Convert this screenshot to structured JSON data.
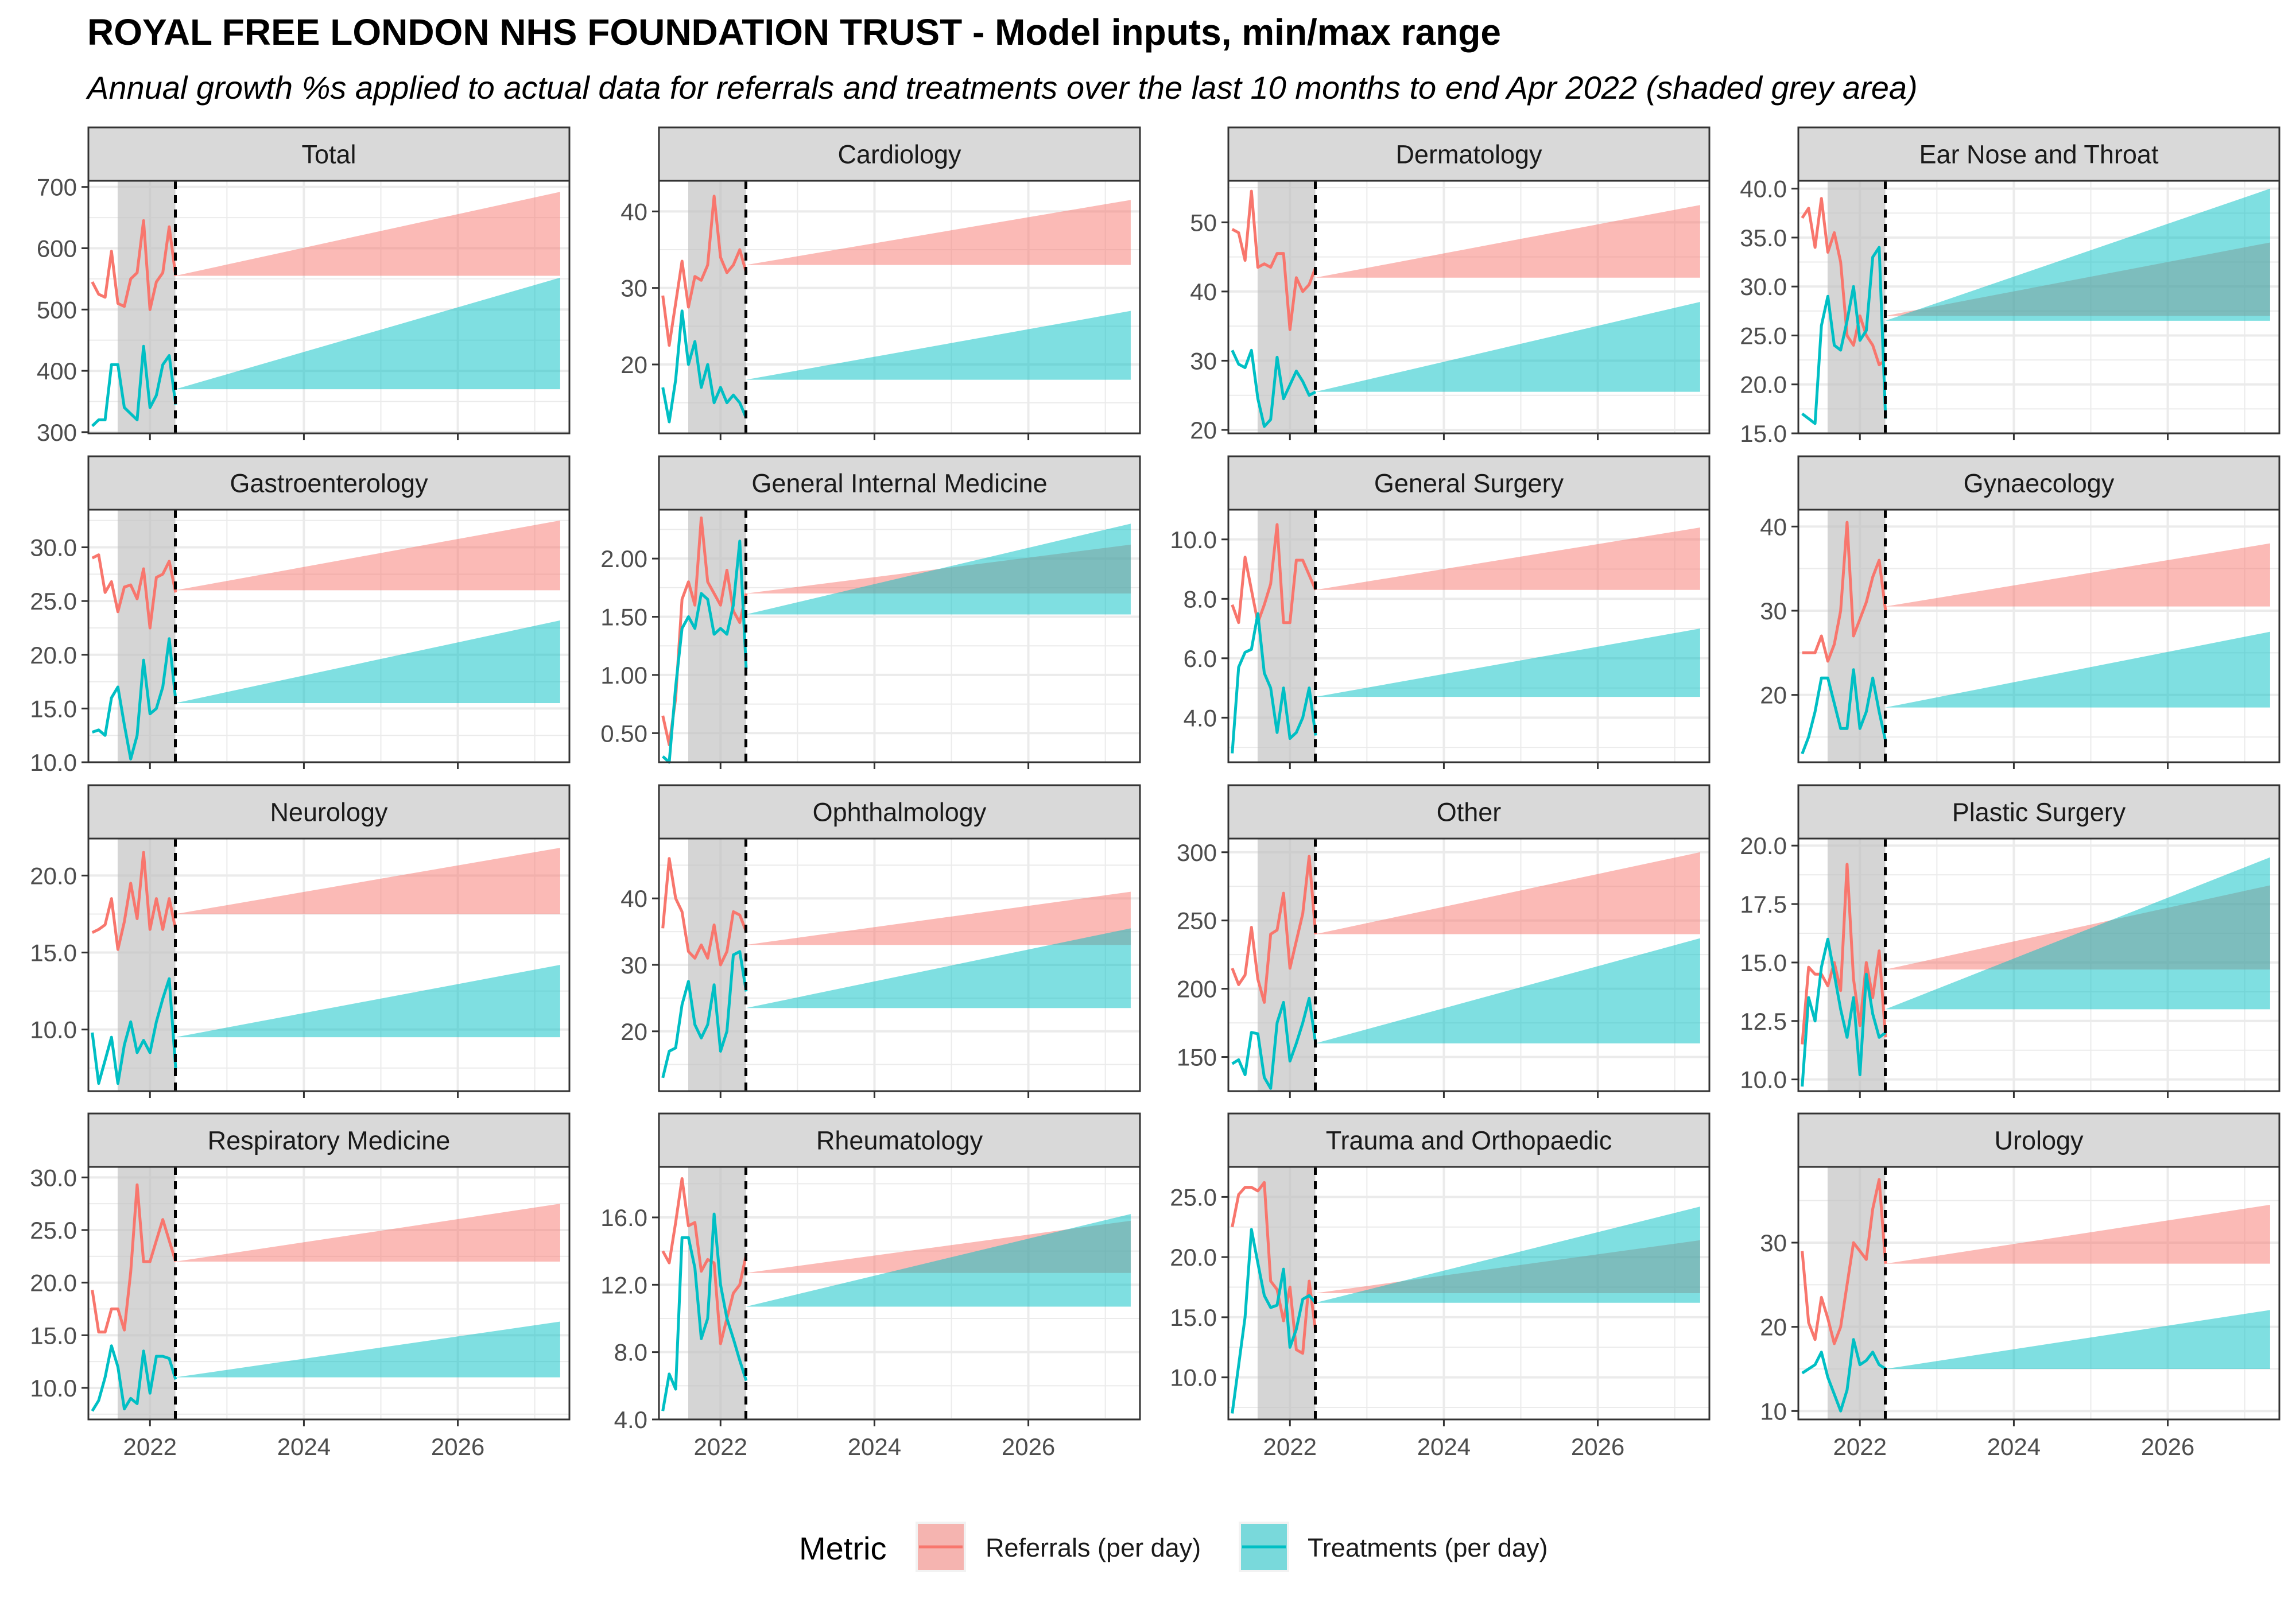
{
  "title": "ROYAL FREE LONDON NHS FOUNDATION TRUST - Model inputs, min/max range",
  "subtitle": "Annual growth %s applied to actual data for referrals and treatments over the last 10 months to end Apr 2022 (shaded grey area)",
  "legend": {
    "title": "Metric",
    "items": [
      {
        "label": "Referrals (per day)",
        "line_color": "#F8766D",
        "fill_color": "#F8766D"
      },
      {
        "label": "Treatments (per day)",
        "line_color": "#00BFC4",
        "fill_color": "#00BFC4"
      }
    ]
  },
  "colors": {
    "referrals": "#F8766D",
    "treatments": "#00BFC4",
    "strip_bg": "#D9D9D9",
    "shade": "#BEBEBE",
    "grid": "#EBEBEB"
  },
  "chart_data": {
    "type": "line",
    "layout": "facet-wrap 4x4, free y scales, shared x axis",
    "x_axis": {
      "ticks": [
        2022,
        2024,
        2026
      ],
      "xlim": [
        2021.2,
        2027.45
      ]
    },
    "shaded_period": [
      2021.58,
      2022.33
    ],
    "forecast_start": 2022.33,
    "forecast_end": 2027.33,
    "panels": [
      {
        "name": "Total",
        "ylim": [
          298,
          710
        ],
        "yticks": [
          "300",
          "400",
          "500",
          "600",
          "700"
        ],
        "referrals": [
          545,
          525,
          520,
          595,
          510,
          505,
          550,
          560,
          645,
          500,
          545,
          560,
          635,
          555
        ],
        "treatments": [
          310,
          320,
          320,
          410,
          410,
          340,
          330,
          320,
          440,
          340,
          360,
          410,
          425,
          345
        ],
        "referrals_band": [
          555,
          555,
          555,
          692
        ],
        "treatments_band": [
          370,
          370,
          370,
          552
        ]
      },
      {
        "name": "Cardiology",
        "ylim": [
          11,
          44
        ],
        "yticks": [
          "20",
          "30",
          "40"
        ],
        "referrals": [
          29,
          22.5,
          28,
          33.5,
          27.5,
          31.5,
          31,
          33,
          42,
          34,
          32,
          33,
          35,
          32
        ],
        "treatments": [
          17,
          12.5,
          18,
          27,
          20,
          23,
          17,
          20,
          15,
          17,
          15,
          16,
          15,
          13
        ],
        "referrals_band": [
          33,
          33,
          33,
          41.5
        ],
        "treatments_band": [
          18,
          18,
          18,
          27
        ]
      },
      {
        "name": "Dermatology",
        "ylim": [
          19.5,
          56
        ],
        "yticks": [
          "20",
          "30",
          "40",
          "50"
        ],
        "referrals": [
          49,
          48.5,
          44.5,
          54.5,
          43.5,
          44,
          43.5,
          45.5,
          45.5,
          34.5,
          42,
          40,
          41,
          43.5
        ],
        "treatments": [
          31.5,
          29.5,
          29,
          31.5,
          24.5,
          20.5,
          21.5,
          30.5,
          24.5,
          26.5,
          28.5,
          27,
          25,
          25.5
        ],
        "referrals_band": [
          42,
          42,
          42,
          52.5
        ],
        "treatments_band": [
          25.5,
          25.5,
          25.5,
          38.5
        ]
      },
      {
        "name": "Ear Nose and Throat",
        "ylim": [
          15,
          40.8
        ],
        "yticks": [
          "15.0",
          "20.0",
          "25.0",
          "30.0",
          "35.0",
          "40.0"
        ],
        "referrals": [
          37,
          38,
          34,
          39,
          33.5,
          35.5,
          32.5,
          25,
          24,
          27,
          25,
          24,
          22,
          22.5
        ],
        "treatments": [
          17,
          16.5,
          16,
          26,
          29,
          24,
          23.5,
          26.5,
          30,
          24.5,
          25.5,
          33,
          34,
          16.5
        ],
        "referrals_band": [
          27,
          27,
          27,
          34.5
        ],
        "treatments_band": [
          26.5,
          26.5,
          26.5,
          40
        ]
      },
      {
        "name": "Gastroenterology",
        "ylim": [
          10,
          33.5
        ],
        "yticks": [
          "10.0",
          "15.0",
          "20.0",
          "25.0",
          "30.0"
        ],
        "referrals": [
          29,
          29.3,
          25.8,
          26.8,
          24,
          26.3,
          26.5,
          25.2,
          28,
          22.5,
          27.2,
          27.5,
          28.7,
          25.8
        ],
        "treatments": [
          12.8,
          13,
          12.5,
          16,
          17,
          13.5,
          10.3,
          12.5,
          19.5,
          14.5,
          15,
          17,
          21.5,
          15.8
        ],
        "referrals_band": [
          26,
          26,
          26,
          32.5
        ],
        "treatments_band": [
          15.5,
          15.5,
          15.5,
          23.2
        ]
      },
      {
        "name": "General Internal Medicine",
        "ylim": [
          0.25,
          2.42
        ],
        "yticks": [
          "0.50",
          "1.00",
          "1.50",
          "2.00"
        ],
        "referrals": [
          0.65,
          0.4,
          0.8,
          1.65,
          1.8,
          1.6,
          2.35,
          1.8,
          1.7,
          1.6,
          1.9,
          1.55,
          1.45,
          1.7
        ],
        "treatments": [
          0.3,
          0.25,
          0.9,
          1.4,
          1.5,
          1.4,
          1.7,
          1.65,
          1.35,
          1.4,
          1.35,
          1.6,
          2.15,
          1.05
        ],
        "referrals_band": [
          1.7,
          1.7,
          1.7,
          2.12
        ],
        "treatments_band": [
          1.52,
          1.52,
          1.52,
          2.3
        ]
      },
      {
        "name": "General Surgery",
        "ylim": [
          2.5,
          11
        ],
        "yticks": [
          "4.0",
          "6.0",
          "8.0",
          "10.0"
        ],
        "referrals": [
          7.8,
          7.2,
          9.4,
          8.3,
          7.2,
          7.8,
          8.5,
          10.5,
          7.2,
          7.2,
          9.3,
          9.3,
          8.8,
          8.3
        ],
        "treatments": [
          2.8,
          5.7,
          6.2,
          6.3,
          7.5,
          5.5,
          5.0,
          3.5,
          5.0,
          3.3,
          3.5,
          4.0,
          5.0,
          3.4
        ],
        "referrals_band": [
          8.3,
          8.3,
          8.3,
          10.4
        ],
        "treatments_band": [
          4.7,
          4.7,
          4.7,
          7.0
        ]
      },
      {
        "name": "Gynaecology",
        "ylim": [
          12,
          42
        ],
        "yticks": [
          "20",
          "30",
          "40"
        ],
        "referrals": [
          25,
          25,
          25,
          27,
          24,
          26,
          30,
          40.5,
          27,
          29,
          31,
          34,
          36,
          30
        ],
        "treatments": [
          13,
          15,
          18,
          22,
          22,
          19,
          16,
          16,
          23,
          16,
          18,
          22,
          18,
          14.5
        ],
        "referrals_band": [
          30.5,
          30.5,
          30.5,
          38
        ],
        "treatments_band": [
          18.5,
          18.5,
          18.5,
          27.5
        ]
      },
      {
        "name": "Neurology",
        "ylim": [
          6,
          22.4
        ],
        "yticks": [
          "10.0",
          "15.0",
          "20.0"
        ],
        "referrals": [
          16.3,
          16.5,
          16.8,
          18.5,
          15.2,
          17,
          19.5,
          17.2,
          21.5,
          16.5,
          18.5,
          16.5,
          18.5,
          16.5
        ],
        "treatments": [
          9.8,
          6.5,
          8,
          9.5,
          6.5,
          9,
          10.5,
          8.5,
          9.3,
          8.5,
          10.5,
          12,
          13.3,
          7.5
        ],
        "referrals_band": [
          17.5,
          17.5,
          17.5,
          21.8
        ],
        "treatments_band": [
          9.5,
          9.5,
          9.5,
          14.2
        ]
      },
      {
        "name": "Ophthalmology",
        "ylim": [
          11,
          49
        ],
        "yticks": [
          "20",
          "30",
          "40"
        ],
        "referrals": [
          35.5,
          46,
          40,
          38,
          32,
          31,
          33,
          31,
          36,
          30,
          32,
          38,
          37.5,
          35
        ],
        "treatments": [
          13,
          17,
          17.5,
          24,
          27.5,
          21,
          19,
          21,
          27,
          17,
          20,
          31.5,
          32,
          26
        ],
        "referrals_band": [
          33,
          33,
          33,
          41
        ],
        "treatments_band": [
          23.5,
          23.5,
          23.5,
          35.5
        ]
      },
      {
        "name": "Other",
        "ylim": [
          125,
          310
        ],
        "yticks": [
          "150",
          "200",
          "250",
          "300"
        ],
        "referrals": [
          215,
          203,
          210,
          245,
          207,
          190,
          240,
          243,
          270,
          215,
          235,
          255,
          297,
          240
        ],
        "treatments": [
          145,
          148,
          137,
          168,
          167,
          135,
          127,
          175,
          190,
          147,
          160,
          175,
          193,
          160
        ],
        "referrals_band": [
          240,
          240,
          240,
          300
        ],
        "treatments_band": [
          160,
          160,
          160,
          237
        ]
      },
      {
        "name": "Plastic Surgery",
        "ylim": [
          9.5,
          20.3
        ],
        "yticks": [
          "10.0",
          "12.5",
          "15.0",
          "17.5",
          "20.0"
        ],
        "referrals": [
          11.5,
          14.8,
          14.5,
          14.5,
          14,
          15,
          13.8,
          19.2,
          14.3,
          12.3,
          15,
          13.5,
          15.5,
          11.8
        ],
        "treatments": [
          9.7,
          13.5,
          12.5,
          14.8,
          16,
          14.5,
          13,
          11.8,
          13.5,
          10.2,
          14.5,
          12.8,
          11.8,
          12
        ],
        "referrals_band": [
          14.7,
          14.7,
          14.7,
          18.3
        ],
        "treatments_band": [
          13,
          13,
          13,
          19.5
        ]
      },
      {
        "name": "Respiratory Medicine",
        "ylim": [
          7,
          31
        ],
        "yticks": [
          "10.0",
          "15.0",
          "20.0",
          "25.0",
          "30.0"
        ],
        "referrals": [
          19.3,
          15.3,
          15.3,
          17.5,
          17.5,
          15.5,
          21,
          29.3,
          22,
          22,
          24,
          26,
          24,
          22
        ],
        "treatments": [
          7.8,
          8.8,
          11,
          14,
          12,
          8,
          9,
          8.5,
          13.5,
          9.5,
          13,
          13,
          12.8,
          10.8
        ],
        "referrals_band": [
          22,
          22,
          22,
          27.5
        ],
        "treatments_band": [
          11,
          11,
          11,
          16.3
        ]
      },
      {
        "name": "Rheumatology",
        "ylim": [
          4,
          19
        ],
        "yticks": [
          "4.0",
          "8.0",
          "12.0",
          "16.0"
        ],
        "referrals": [
          14,
          13.3,
          15.7,
          18.3,
          15.5,
          15.7,
          12.8,
          13.5,
          13.3,
          8.5,
          10,
          11.5,
          12,
          13.8
        ],
        "treatments": [
          4.5,
          6.7,
          5.8,
          14.8,
          14.8,
          13,
          8.8,
          10,
          16.2,
          12,
          10,
          8.8,
          7.5,
          6.3
        ],
        "referrals_band": [
          12.7,
          12.7,
          12.7,
          15.8
        ],
        "treatments_band": [
          10.7,
          10.7,
          10.7,
          16.2
        ]
      },
      {
        "name": "Trauma and Orthopaedic",
        "ylim": [
          6.5,
          27.5
        ],
        "yticks": [
          "10.0",
          "15.0",
          "20.0",
          "25.0"
        ],
        "referrals": [
          22.5,
          25.2,
          25.8,
          25.8,
          25.5,
          26.2,
          18,
          17.3,
          14.7,
          17.5,
          12.3,
          12,
          18,
          13.8
        ],
        "treatments": [
          7,
          11,
          15,
          22.3,
          19.5,
          16.8,
          15.8,
          16,
          19,
          12.5,
          14,
          16.5,
          16.8,
          16.2
        ],
        "referrals_band": [
          17,
          17,
          17,
          21.4
        ],
        "treatments_band": [
          16.2,
          16.2,
          16.2,
          24.2
        ]
      },
      {
        "name": "Urology",
        "ylim": [
          9,
          39
        ],
        "yticks": [
          "10",
          "20",
          "30"
        ],
        "referrals": [
          29,
          20.5,
          18.5,
          23.5,
          21,
          18,
          20,
          25,
          30,
          29,
          28,
          34,
          37.5,
          27.5
        ],
        "treatments": [
          14.5,
          15,
          15.5,
          17,
          14,
          12,
          10,
          12.5,
          18.5,
          15.5,
          16,
          17,
          15.5,
          15
        ],
        "referrals_band": [
          27.5,
          27.5,
          27.5,
          34.5
        ],
        "treatments_band": [
          15,
          15,
          15,
          22
        ]
      }
    ]
  }
}
